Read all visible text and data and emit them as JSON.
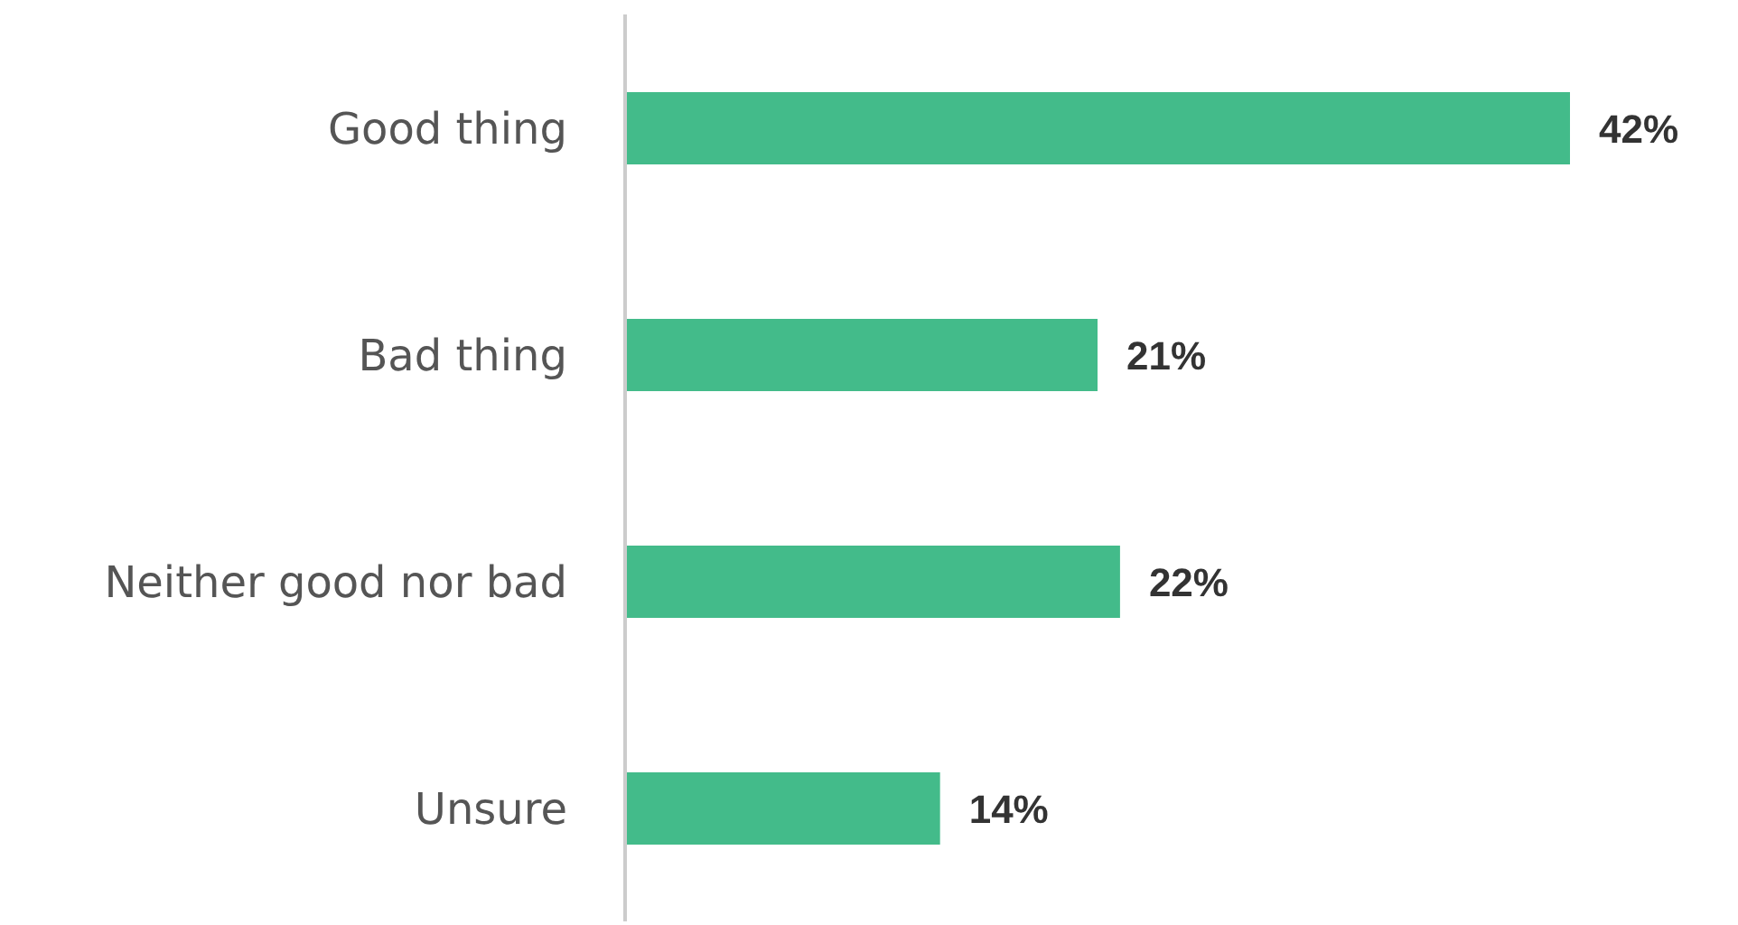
{
  "chart_data": {
    "type": "bar",
    "orientation": "horizontal",
    "categories": [
      "Good thing",
      "Bad thing",
      "Neither good nor bad",
      "Unsure"
    ],
    "values": [
      42,
      21,
      22,
      14
    ],
    "color": "#43bb8a",
    "value_labels": [
      "42%",
      "21%",
      "22%",
      "14%"
    ]
  }
}
